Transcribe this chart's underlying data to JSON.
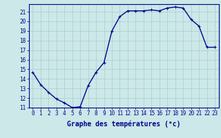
{
  "x": [
    0,
    1,
    2,
    3,
    4,
    5,
    6,
    7,
    8,
    9,
    10,
    11,
    12,
    13,
    14,
    15,
    16,
    17,
    18,
    19,
    20,
    21,
    22,
    23
  ],
  "y": [
    14.7,
    13.4,
    12.6,
    11.9,
    11.5,
    11.0,
    11.1,
    13.3,
    14.7,
    15.7,
    19.0,
    20.5,
    21.1,
    21.1,
    21.1,
    21.2,
    21.1,
    21.4,
    21.5,
    21.4,
    20.2,
    19.5,
    17.3,
    17.3
  ],
  "line_color": "#00008B",
  "marker": "+",
  "marker_size": 3,
  "marker_linewidth": 0.8,
  "bg_color": "#cce8e8",
  "grid_color": "#aacccc",
  "axis_color": "#00008B",
  "xlabel": "Graphe des températures (°c)",
  "xlim": [
    -0.5,
    23.5
  ],
  "ylim": [
    11,
    21.8
  ],
  "yticks": [
    11,
    12,
    13,
    14,
    15,
    16,
    17,
    18,
    19,
    20,
    21
  ],
  "xticks": [
    0,
    1,
    2,
    3,
    4,
    5,
    6,
    7,
    8,
    9,
    10,
    11,
    12,
    13,
    14,
    15,
    16,
    17,
    18,
    19,
    20,
    21,
    22,
    23
  ],
  "xlabel_fontsize": 7,
  "tick_fontsize": 5.5,
  "line_width": 1.0
}
